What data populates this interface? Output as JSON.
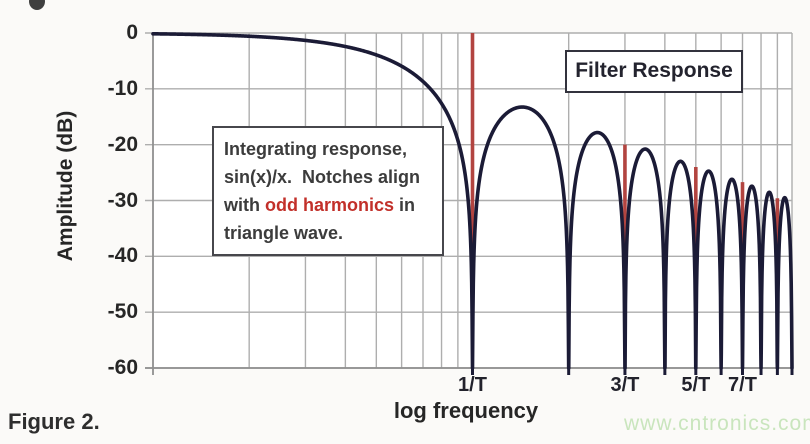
{
  "page": {
    "figure_caption": "Figure 2.",
    "watermark": "www.cntronics.com"
  },
  "annotation": {
    "text_before": "Integrating response,\nsin(x)/x.  Notches align\nwith ",
    "highlight": "odd harmonics",
    "text_after": " in\ntriangle wave.",
    "highlight_color": "#c2302a"
  },
  "chart_data": {
    "type": "line",
    "title": "Filter Response",
    "xlabel": "log frequency",
    "ylabel": "Amplitude (dB)",
    "x_scale": "log",
    "x_range_in_1_over_T": [
      0.1,
      10
    ],
    "ylim": [
      -60,
      0
    ],
    "grid": "on",
    "v_gridlines_fT": [
      0.2,
      0.3,
      0.4,
      0.5,
      0.6,
      0.7,
      0.8,
      0.9,
      1,
      2,
      3,
      4,
      5,
      6,
      7,
      8,
      9,
      10
    ],
    "y_ticks": [
      {
        "label": "0",
        "dB": 0
      },
      {
        "label": "-10",
        "dB": -10
      },
      {
        "label": "-20",
        "dB": -20
      },
      {
        "label": "-30",
        "dB": -30
      },
      {
        "label": "-40",
        "dB": -40
      },
      {
        "label": "-50",
        "dB": -50
      },
      {
        "label": "-60",
        "dB": -60
      }
    ],
    "x_ticks": [
      {
        "label": "1/T",
        "fT": 1
      },
      {
        "label": "3/T",
        "fT": 3
      },
      {
        "label": "5/T",
        "fT": 5
      },
      {
        "label": "7/T",
        "fT": 7
      }
    ],
    "curve": {
      "name": "integrating sin(x)/x filter response",
      "formula_dB": "20*log10(abs(sin(pi*f*T)/(pi*f*T)))",
      "clip_dB": -60,
      "color": "#1b1b36",
      "notches_fT": [
        1,
        2,
        3,
        4,
        5,
        6,
        7,
        8,
        9,
        10
      ],
      "lobe_peaks_dB": [
        -13.3,
        -17.8,
        -20.8,
        -23.3,
        -25.2,
        -26.9,
        -28.3,
        -29.5,
        -30.6
      ]
    },
    "harmonic_markers": {
      "description": "red lines mark odd harmonics of triangle wave at notch frequencies",
      "color": "#b24440",
      "bottom_dB": -38.5,
      "items": [
        {
          "fT": 1,
          "top_dB": 0
        },
        {
          "fT": 3,
          "top_dB": -20
        },
        {
          "fT": 5,
          "top_dB": -24
        },
        {
          "fT": 7,
          "top_dB": -26.7
        },
        {
          "fT": 9,
          "top_dB": -29.6
        }
      ]
    },
    "colors": {
      "grid": "#aeaeae",
      "axis": "#8f8f8f",
      "plot_bg": "#ffffff"
    }
  }
}
